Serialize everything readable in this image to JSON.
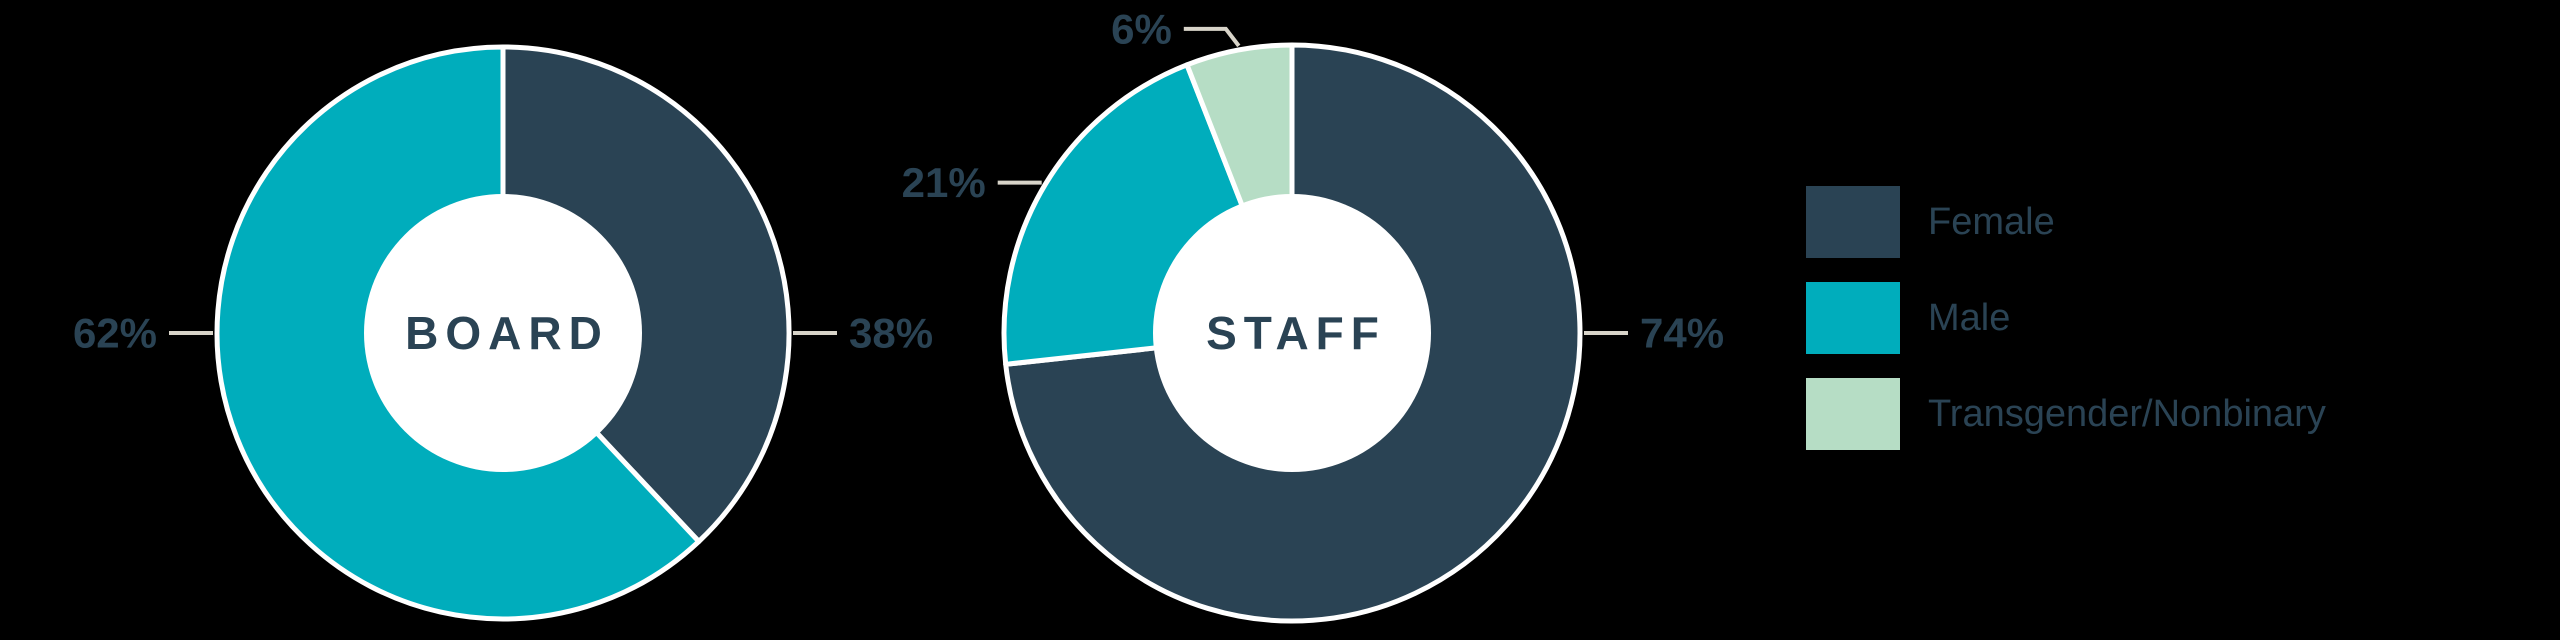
{
  "background": "#000000",
  "palette": {
    "female": "#2A4354",
    "male": "#00ADBC",
    "transgender_nonbinary": "#B6DDC5",
    "label_text": "#2A4354",
    "leader_line": "#D8D4C9",
    "hole": "#FFFFFF",
    "separator": "#FFFFFF"
  },
  "chart_data": [
    {
      "type": "pie",
      "variant": "donut",
      "title": "BOARD",
      "center_label": "BOARD",
      "start_angle_deg": 0,
      "direction": "clockwise",
      "slices": [
        {
          "label": "Female",
          "value_pct": 38,
          "color_key": "female",
          "callout": {
            "text": "38%",
            "angle_deg": 90,
            "dir": "right",
            "elbow": false
          }
        },
        {
          "label": "Male",
          "value_pct": 62,
          "color_key": "male",
          "callout": {
            "text": "62%",
            "angle_deg": 270,
            "dir": "left",
            "elbow": false
          }
        }
      ]
    },
    {
      "type": "pie",
      "variant": "donut",
      "title": "STAFF",
      "center_label": "STAFF",
      "start_angle_deg": 0,
      "direction": "clockwise",
      "slices": [
        {
          "label": "Female",
          "value_pct": 74,
          "color_key": "female",
          "callout": {
            "text": "74%",
            "angle_deg": 90,
            "dir": "right",
            "elbow": false
          }
        },
        {
          "label": "Male",
          "value_pct": 21,
          "color_key": "male",
          "callout": {
            "text": "21%",
            "angle_deg": 301,
            "dir": "left",
            "elbow": false
          }
        },
        {
          "label": "Transgender/Nonbinary",
          "value_pct": 6,
          "color_key": "transgender_nonbinary",
          "callout": {
            "text": "6%",
            "angle_deg": 349.5,
            "dir": "left",
            "elbow": true
          }
        }
      ]
    }
  ],
  "legend": {
    "position": "right",
    "items": [
      {
        "label": "Female",
        "color_key": "female"
      },
      {
        "label": "Male",
        "color_key": "male"
      },
      {
        "label": "Transgender/Nonbinary",
        "color_key": "transgender_nonbinary"
      }
    ]
  }
}
